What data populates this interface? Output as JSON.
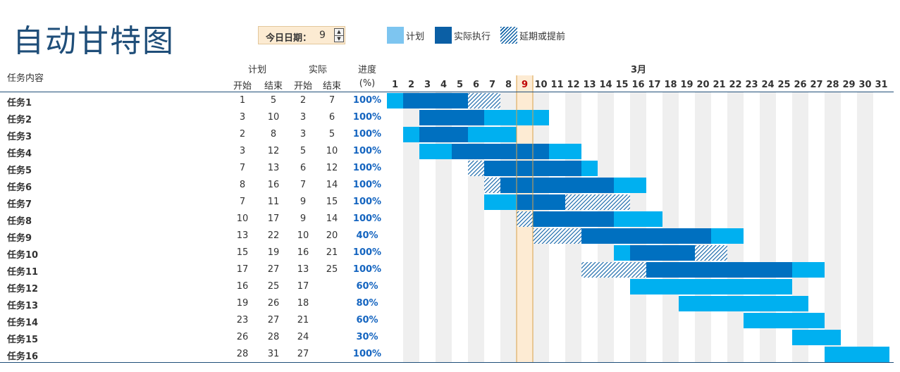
{
  "title": "自动甘特图",
  "today": {
    "label": "今日日期：",
    "value": 9
  },
  "legend": [
    {
      "label": "计划",
      "color": "#7dc5f0",
      "pattern": false
    },
    {
      "label": "实际执行",
      "color": "#0b5fa5",
      "pattern": false
    },
    {
      "label": "延期或提前",
      "color": "#0b5fa5",
      "pattern": true
    }
  ],
  "headers": {
    "task": "任务内容",
    "plan": "计划",
    "actual": "实际",
    "start": "开始",
    "end": "结束",
    "progress": "进度",
    "progress_unit": "(%)",
    "month": "3月"
  },
  "colors": {
    "plan": "#00b0f0",
    "actual": "#0070c0",
    "today_col": "#fdebd3",
    "today_line": "#d9a24a",
    "weekend": "#efefef",
    "rule": "#1f4e79"
  },
  "chart_data": {
    "type": "gantt",
    "title": "自动甘特图",
    "month": "3月",
    "days": [
      1,
      2,
      3,
      4,
      5,
      6,
      7,
      8,
      9,
      10,
      11,
      12,
      13,
      14,
      15,
      16,
      17,
      18,
      19,
      20,
      21,
      22,
      23,
      24,
      25,
      26,
      27,
      28,
      29,
      30,
      31
    ],
    "today": 9,
    "tasks": [
      {
        "name": "任务1",
        "plan_start": 1,
        "plan_end": 5,
        "actual_start": 2,
        "actual_end": 7,
        "progress": "100%"
      },
      {
        "name": "任务2",
        "plan_start": 3,
        "plan_end": 10,
        "actual_start": 3,
        "actual_end": 6,
        "progress": "100%"
      },
      {
        "name": "任务3",
        "plan_start": 2,
        "plan_end": 8,
        "actual_start": 3,
        "actual_end": 5,
        "progress": "100%"
      },
      {
        "name": "任务4",
        "plan_start": 3,
        "plan_end": 12,
        "actual_start": 5,
        "actual_end": 10,
        "progress": "100%"
      },
      {
        "name": "任务5",
        "plan_start": 7,
        "plan_end": 13,
        "actual_start": 6,
        "actual_end": 12,
        "progress": "100%"
      },
      {
        "name": "任务6",
        "plan_start": 8,
        "plan_end": 16,
        "actual_start": 7,
        "actual_end": 14,
        "progress": "100%"
      },
      {
        "name": "任务7",
        "plan_start": 7,
        "plan_end": 11,
        "actual_start": 9,
        "actual_end": 15,
        "progress": "100%"
      },
      {
        "name": "任务8",
        "plan_start": 10,
        "plan_end": 17,
        "actual_start": 9,
        "actual_end": 14,
        "progress": "100%"
      },
      {
        "name": "任务9",
        "plan_start": 13,
        "plan_end": 22,
        "actual_start": 10,
        "actual_end": 20,
        "progress": "40%"
      },
      {
        "name": "任务10",
        "plan_start": 15,
        "plan_end": 19,
        "actual_start": 16,
        "actual_end": 21,
        "progress": "100%"
      },
      {
        "name": "任务11",
        "plan_start": 17,
        "plan_end": 27,
        "actual_start": 13,
        "actual_end": 25,
        "progress": "100%"
      },
      {
        "name": "任务12",
        "plan_start": 16,
        "plan_end": 25,
        "actual_start": 17,
        "actual_end": null,
        "progress": "60%"
      },
      {
        "name": "任务13",
        "plan_start": 19,
        "plan_end": 26,
        "actual_start": 18,
        "actual_end": null,
        "progress": "80%"
      },
      {
        "name": "任务14",
        "plan_start": 23,
        "plan_end": 27,
        "actual_start": 21,
        "actual_end": null,
        "progress": "60%"
      },
      {
        "name": "任务15",
        "plan_start": 26,
        "plan_end": 28,
        "actual_start": 24,
        "actual_end": null,
        "progress": "30%"
      },
      {
        "name": "任务16",
        "plan_start": 28,
        "plan_end": 31,
        "actual_start": 27,
        "actual_end": null,
        "progress": "100%"
      }
    ]
  }
}
